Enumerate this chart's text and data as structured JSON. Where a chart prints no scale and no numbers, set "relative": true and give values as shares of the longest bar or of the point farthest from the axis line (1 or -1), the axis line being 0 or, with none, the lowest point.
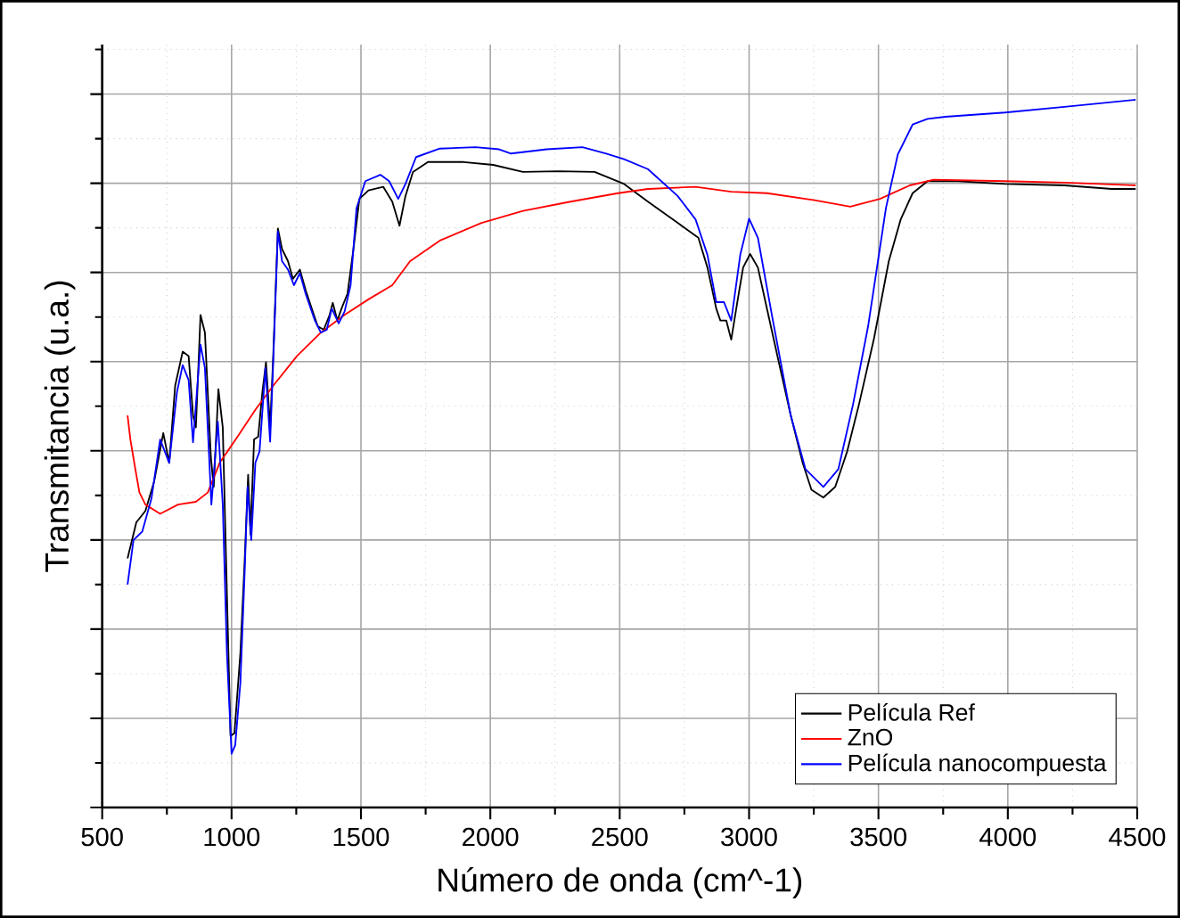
{
  "chart_data": {
    "type": "line",
    "xlabel": "Número de onda (cm^-1)",
    "ylabel": "Transmitancia (u.a.)",
    "relative": true,
    "xlim": [
      500,
      4500
    ],
    "xticks": [
      500,
      1000,
      1500,
      2000,
      2500,
      3000,
      3500,
      4000,
      4500
    ],
    "grid": true,
    "legend": "bottom right",
    "tick_labels": "x",
    "marker": "none",
    "line_style": "solid",
    "series": [
      {
        "name": "Película Ref",
        "color": "#000000",
        "x": [
          598,
          632,
          667,
          701,
          736,
          759,
          782,
          811,
          834,
          851,
          862,
          880,
          897,
          920,
          931,
          949,
          966,
          982,
          996,
          1011,
          1034,
          1050,
          1064,
          1073,
          1087,
          1103,
          1119,
          1133,
          1149,
          1161,
          1179,
          1195,
          1218,
          1237,
          1264,
          1287,
          1310,
          1333,
          1356,
          1379,
          1391,
          1409,
          1425,
          1448,
          1471,
          1494,
          1529,
          1586,
          1621,
          1649,
          1672,
          1701,
          1759,
          1897,
          2011,
          2126,
          2264,
          2403,
          2517,
          2609,
          2724,
          2804,
          2839,
          2873,
          2889,
          2912,
          2931,
          2954,
          2977,
          3004,
          3034,
          3069,
          3115,
          3161,
          3207,
          3241,
          3287,
          3333,
          3379,
          3425,
          3483,
          3540,
          3586,
          3632,
          3690,
          3805,
          3989,
          4219,
          4402,
          4494
        ],
        "values": [
          0.352,
          0.403,
          0.419,
          0.461,
          0.529,
          0.487,
          0.596,
          0.644,
          0.638,
          0.554,
          0.537,
          0.696,
          0.671,
          0.495,
          0.453,
          0.591,
          0.537,
          0.302,
          0.101,
          0.105,
          0.218,
          0.344,
          0.47,
          0.386,
          0.52,
          0.524,
          0.587,
          0.629,
          0.537,
          0.638,
          0.818,
          0.789,
          0.772,
          0.747,
          0.76,
          0.73,
          0.705,
          0.68,
          0.675,
          0.696,
          0.713,
          0.688,
          0.705,
          0.726,
          0.789,
          0.86,
          0.872,
          0.877,
          0.856,
          0.822,
          0.864,
          0.898,
          0.912,
          0.912,
          0.908,
          0.898,
          0.899,
          0.898,
          0.881,
          0.856,
          0.826,
          0.805,
          0.763,
          0.705,
          0.688,
          0.688,
          0.661,
          0.713,
          0.763,
          0.782,
          0.763,
          0.705,
          0.629,
          0.554,
          0.487,
          0.449,
          0.438,
          0.453,
          0.503,
          0.57,
          0.663,
          0.772,
          0.831,
          0.868,
          0.885,
          0.885,
          0.881,
          0.879,
          0.874,
          0.874
        ]
      },
      {
        "name": "ZnO",
        "color": "#ff0000",
        "x": [
          598,
          609,
          628,
          644,
          667,
          724,
          793,
          862,
          908,
          954,
          1023,
          1092,
          1161,
          1253,
          1345,
          1437,
          1529,
          1621,
          1690,
          1805,
          1966,
          2126,
          2310,
          2494,
          2609,
          2793,
          2931,
          3069,
          3253,
          3391,
          3506,
          3621,
          3713,
          3989,
          4219,
          4494
        ],
        "values": [
          0.554,
          0.52,
          0.478,
          0.445,
          0.428,
          0.415,
          0.428,
          0.432,
          0.445,
          0.487,
          0.524,
          0.562,
          0.596,
          0.638,
          0.671,
          0.696,
          0.718,
          0.738,
          0.772,
          0.801,
          0.826,
          0.843,
          0.856,
          0.868,
          0.874,
          0.877,
          0.87,
          0.868,
          0.858,
          0.849,
          0.86,
          0.879,
          0.887,
          0.885,
          0.883,
          0.879
        ]
      },
      {
        "name": "Película nanocompuesta",
        "color": "#0000ff",
        "x": [
          598,
          621,
          655,
          690,
          724,
          759,
          789,
          811,
          834,
          851,
          880,
          897,
          922,
          931,
          947,
          966,
          982,
          1000,
          1014,
          1034,
          1050,
          1062,
          1076,
          1092,
          1108,
          1131,
          1149,
          1161,
          1179,
          1195,
          1218,
          1241,
          1264,
          1287,
          1322,
          1345,
          1368,
          1387,
          1414,
          1437,
          1460,
          1483,
          1517,
          1575,
          1609,
          1644,
          1672,
          1713,
          1805,
          1943,
          2034,
          2080,
          2218,
          2356,
          2448,
          2517,
          2609,
          2724,
          2793,
          2839,
          2873,
          2903,
          2931,
          2966,
          3000,
          3034,
          3092,
          3161,
          3218,
          3287,
          3345,
          3402,
          3460,
          3529,
          3575,
          3632,
          3690,
          3759,
          3989,
          4219,
          4494
        ],
        "values": [
          0.315,
          0.378,
          0.39,
          0.436,
          0.52,
          0.487,
          0.587,
          0.625,
          0.604,
          0.516,
          0.654,
          0.621,
          0.428,
          0.47,
          0.545,
          0.428,
          0.218,
          0.076,
          0.088,
          0.176,
          0.327,
          0.453,
          0.378,
          0.487,
          0.503,
          0.621,
          0.517,
          0.629,
          0.814,
          0.772,
          0.76,
          0.738,
          0.755,
          0.725,
          0.688,
          0.671,
          0.675,
          0.705,
          0.684,
          0.701,
          0.738,
          0.847,
          0.885,
          0.894,
          0.885,
          0.86,
          0.881,
          0.919,
          0.931,
          0.933,
          0.93,
          0.924,
          0.93,
          0.933,
          0.924,
          0.916,
          0.902,
          0.864,
          0.831,
          0.781,
          0.714,
          0.714,
          0.688,
          0.781,
          0.832,
          0.805,
          0.688,
          0.554,
          0.478,
          0.453,
          0.478,
          0.57,
          0.68,
          0.847,
          0.923,
          0.965,
          0.973,
          0.976,
          0.982,
          0.99,
          1.0
        ]
      }
    ]
  }
}
